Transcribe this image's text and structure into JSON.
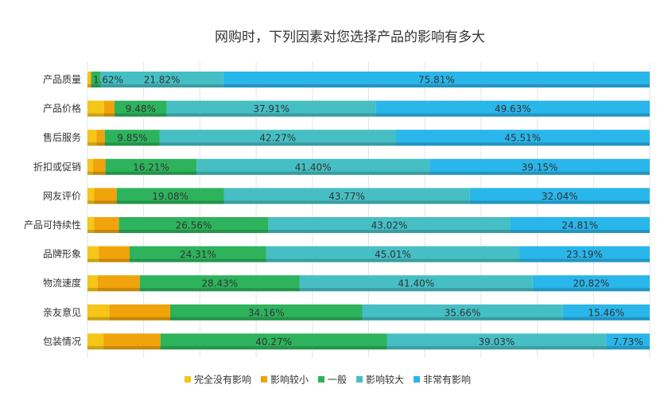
{
  "chart_data": {
    "type": "bar",
    "orientation": "horizontal",
    "stacked": true,
    "percent_stacked": true,
    "title": "网购时，下列因素对您选择产品的影响有多大",
    "categories": [
      "产品质量",
      "产品价格",
      "售后服务",
      "折扣或促销",
      "网友评价",
      "产品可持续性",
      "品牌形象",
      "物流速度",
      "亲友意见",
      "包装情况"
    ],
    "series": [
      {
        "name": "完全没有影响",
        "color": "#f5c518",
        "values": [
          0.5,
          3.0,
          1.6,
          1.0,
          1.2,
          1.2,
          2.0,
          1.8,
          3.9,
          2.9
        ],
        "labels": [
          "",
          "",
          "",
          "",
          "",
          "",
          "",
          "",
          "",
          ""
        ]
      },
      {
        "name": "影响较小",
        "color": "#f0a30a",
        "values": [
          0.2,
          1.9,
          1.5,
          2.2,
          4.0,
          4.4,
          5.5,
          7.5,
          10.8,
          10.1
        ],
        "labels": [
          "",
          "",
          "",
          "",
          "",
          "",
          "",
          "",
          "",
          ""
        ]
      },
      {
        "name": "一般",
        "color": "#2db35c",
        "values": [
          1.62,
          9.48,
          9.85,
          16.21,
          19.08,
          26.56,
          24.31,
          28.43,
          34.16,
          40.27
        ],
        "labels": [
          "1.62%",
          "9.48%",
          "9.85%",
          "16.21%",
          "19.08%",
          "26.56%",
          "24.31%",
          "28.43%",
          "34.16%",
          "40.27%"
        ]
      },
      {
        "name": "影响较大",
        "color": "#45bfc4",
        "values": [
          21.82,
          37.91,
          42.27,
          41.4,
          43.77,
          43.02,
          45.01,
          41.4,
          35.66,
          39.03
        ],
        "labels": [
          "21.82%",
          "37.91%",
          "42.27%",
          "41.40%",
          "43.77%",
          "43.02%",
          "45.01%",
          "41.40%",
          "35.66%",
          "39.03%"
        ]
      },
      {
        "name": "非常有影响",
        "color": "#29b6ea",
        "values": [
          75.81,
          49.63,
          45.51,
          39.15,
          32.04,
          24.81,
          23.19,
          20.82,
          15.46,
          7.73
        ],
        "labels": [
          "75.81%",
          "49.63%",
          "45.51%",
          "39.15%",
          "32.04%",
          "24.81%",
          "23.19%",
          "20.82%",
          "15.46%",
          "7.73%"
        ]
      }
    ],
    "xlim": [
      0,
      100
    ],
    "grid": true,
    "legend_position": "bottom"
  }
}
